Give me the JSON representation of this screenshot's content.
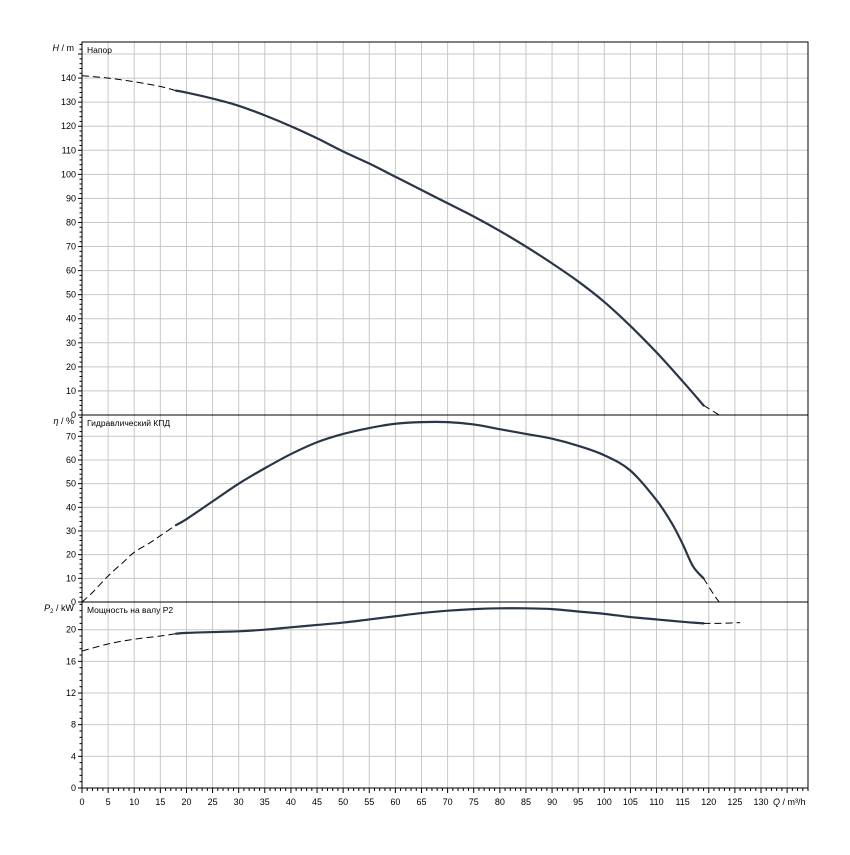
{
  "chart_data": {
    "type": "line",
    "x_axis": {
      "label": "Q / m³/h",
      "range": [
        0,
        139
      ],
      "tick_values": [
        0,
        5,
        10,
        15,
        20,
        25,
        30,
        35,
        40,
        45,
        50,
        55,
        60,
        65,
        70,
        75,
        80,
        85,
        90,
        95,
        100,
        105,
        110,
        115,
        120,
        125,
        130
      ],
      "tick_labels": [
        "0",
        "5",
        "10",
        "15",
        "20",
        "25",
        "30",
        "35",
        "40",
        "45",
        "50",
        "55",
        "60",
        "65",
        "70",
        "75",
        "80",
        "85",
        "90",
        "95",
        "100",
        "105",
        "110",
        "115",
        "120",
        "125",
        "130"
      ],
      "grid": true
    },
    "panels": [
      {
        "name": "head",
        "title": "Напор",
        "y_label_symbol": "H",
        "y_label_unit": " / m",
        "y_range": [
          0,
          155
        ],
        "y_tick_values": [
          0,
          10,
          20,
          30,
          40,
          50,
          60,
          70,
          80,
          90,
          100,
          110,
          120,
          130,
          140
        ],
        "y_tick_labels": [
          "0",
          "10",
          "20",
          "30",
          "40",
          "50",
          "60",
          "70",
          "80",
          "90",
          "100",
          "110",
          "120",
          "130",
          "140"
        ],
        "solid_range": [
          18,
          119
        ],
        "series": {
          "x": [
            0,
            5,
            10,
            15,
            18,
            20,
            25,
            30,
            35,
            40,
            45,
            50,
            55,
            60,
            65,
            70,
            75,
            80,
            85,
            90,
            95,
            100,
            105,
            110,
            115,
            119,
            122
          ],
          "y": [
            141,
            140,
            138.5,
            136.5,
            134.8,
            134,
            131.5,
            128.5,
            124.5,
            120,
            115,
            109.5,
            104.5,
            99,
            93.5,
            88,
            82.5,
            76.5,
            70,
            63,
            55.5,
            47,
            37,
            26,
            14,
            4,
            0
          ]
        }
      },
      {
        "name": "efficiency",
        "title": "Гидравлический КПД",
        "y_label_symbol": "η",
        "y_label_unit": " / %",
        "y_range": [
          0,
          79
        ],
        "y_tick_values": [
          0,
          10,
          20,
          30,
          40,
          50,
          60,
          70
        ],
        "y_tick_labels": [
          "0",
          "10",
          "20",
          "30",
          "40",
          "50",
          "60",
          "70"
        ],
        "solid_range": [
          18,
          119
        ],
        "series": {
          "x": [
            0,
            2,
            5,
            8,
            10,
            13,
            15,
            18,
            20,
            25,
            30,
            35,
            40,
            45,
            50,
            55,
            60,
            65,
            70,
            75,
            80,
            85,
            90,
            95,
            100,
            105,
            110,
            113,
            115,
            117,
            119,
            121,
            122
          ],
          "y": [
            0,
            4,
            11,
            17,
            21,
            25,
            28,
            32.5,
            35,
            42.5,
            50,
            56.5,
            62.5,
            67.5,
            71,
            73.5,
            75.3,
            76,
            76,
            75,
            73,
            71,
            69,
            66,
            62,
            55.5,
            43,
            33,
            24.5,
            15,
            10,
            3,
            0
          ]
        }
      },
      {
        "name": "power",
        "title": "Мощность на валу P2",
        "y_label_symbol": "P",
        "y_label_sub": "2",
        "y_label_unit": " / kW",
        "y_range": [
          0,
          23.5
        ],
        "y_tick_values": [
          0,
          4,
          8,
          12,
          16,
          20
        ],
        "y_tick_labels": [
          "0",
          "4",
          "8",
          "12",
          "16",
          "20"
        ],
        "solid_range": [
          18,
          119
        ],
        "series": {
          "x": [
            0,
            5,
            10,
            15,
            18,
            20,
            25,
            30,
            35,
            40,
            45,
            50,
            55,
            60,
            65,
            70,
            75,
            80,
            85,
            90,
            95,
            100,
            105,
            110,
            115,
            119,
            122,
            126
          ],
          "y": [
            17.3,
            18.2,
            18.8,
            19.2,
            19.5,
            19.6,
            19.7,
            19.8,
            20.0,
            20.3,
            20.6,
            20.9,
            21.3,
            21.7,
            22.1,
            22.4,
            22.6,
            22.7,
            22.7,
            22.6,
            22.3,
            22.0,
            21.6,
            21.3,
            21.0,
            20.8,
            20.8,
            20.9
          ]
        }
      }
    ]
  }
}
